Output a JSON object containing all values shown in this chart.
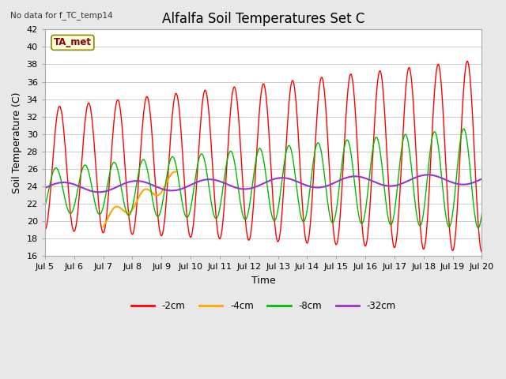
{
  "title": "Alfalfa Soil Temperatures Set C",
  "xlabel": "Time",
  "ylabel": "Soil Temperature (C)",
  "annotation_top_left": "No data for f_TC_temp14",
  "annotation_box": "TA_met",
  "xlim": [
    0,
    15
  ],
  "ylim": [
    16,
    42
  ],
  "yticks": [
    16,
    18,
    20,
    22,
    24,
    26,
    28,
    30,
    32,
    34,
    36,
    38,
    40,
    42
  ],
  "xtick_labels": [
    "Jul 5",
    "Jul 6",
    "Jul 7",
    "Jul 8",
    "Jul 9",
    "Jul 10",
    "Jul 11",
    "Jul 12",
    "Jul 13",
    "Jul 14",
    "Jul 15",
    "Jul 16",
    "Jul 17",
    "Jul 18",
    "Jul 19",
    "Jul 20"
  ],
  "colors": {
    "2cm": "#ff0000",
    "4cm": "#ffa500",
    "8cm": "#00bb00",
    "32cm": "#9933cc"
  },
  "legend_labels": [
    "-2cm",
    "-4cm",
    "-8cm",
    "-32cm"
  ],
  "background_color": "#e8e8e8",
  "plot_bg_color": "#ffffff",
  "grid_color": "#cccccc",
  "title_fontsize": 12,
  "label_fontsize": 9,
  "tick_fontsize": 8
}
